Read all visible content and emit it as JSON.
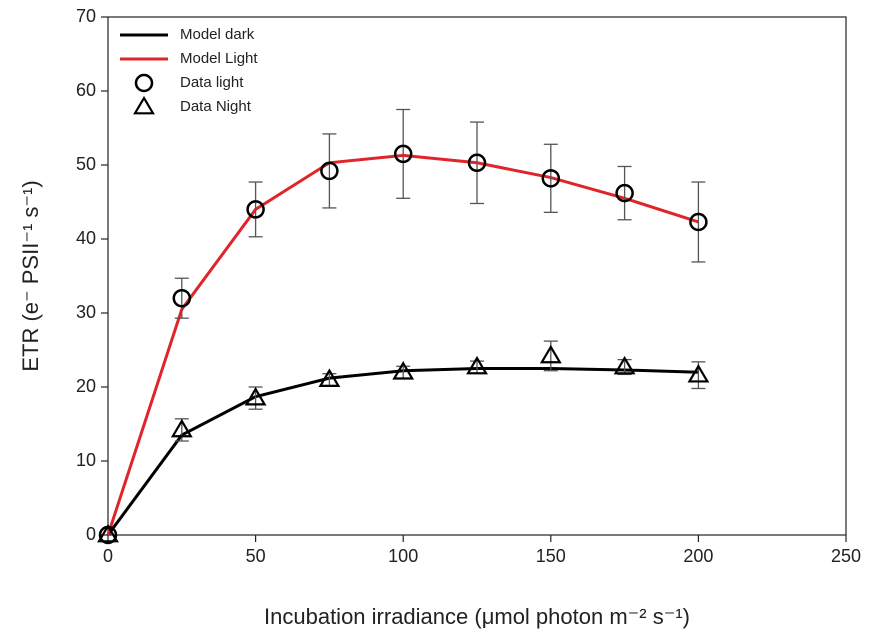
{
  "chart_data": {
    "type": "line",
    "xlabel": "Incubation irradiance (μmol photon m⁻² s⁻¹)",
    "ylabel": "ETR (e⁻ PSII⁻¹ s⁻¹)",
    "x": [
      0,
      25,
      50,
      75,
      100,
      125,
      150,
      175,
      200
    ],
    "xlim": [
      0,
      250
    ],
    "xticks": [
      0,
      50,
      100,
      150,
      200,
      250
    ],
    "ylim": [
      0,
      70
    ],
    "yticks": [
      0,
      10,
      20,
      30,
      40,
      50,
      60,
      70
    ],
    "legend": "upper left",
    "series": [
      {
        "name": "Model dark",
        "color": "#000000",
        "style": "line",
        "values": [
          0,
          13.5,
          18.7,
          21.2,
          22.2,
          22.5,
          22.5,
          22.3,
          22.0
        ]
      },
      {
        "name": "Model Light",
        "color": "#e0242b",
        "style": "line",
        "values": [
          0,
          30.5,
          44.0,
          50.3,
          51.3,
          50.3,
          48.3,
          45.5,
          42.3
        ]
      },
      {
        "name": "Data light",
        "color": "#000000",
        "style": "circle",
        "values": [
          0,
          32,
          44,
          49.2,
          51.5,
          50.3,
          48.2,
          46.2,
          42.3
        ],
        "errors": [
          null,
          2.7,
          3.7,
          5,
          6,
          5.5,
          4.6,
          3.6,
          5.4
        ]
      },
      {
        "name": "Data Night",
        "color": "#000000",
        "style": "triangle",
        "values": [
          0,
          14.2,
          18.5,
          21,
          22,
          22.7,
          24.2,
          22.7,
          21.6
        ],
        "errors": [
          null,
          1.5,
          1.5,
          0.8,
          0.8,
          0.8,
          2,
          1,
          1.8
        ]
      }
    ]
  }
}
